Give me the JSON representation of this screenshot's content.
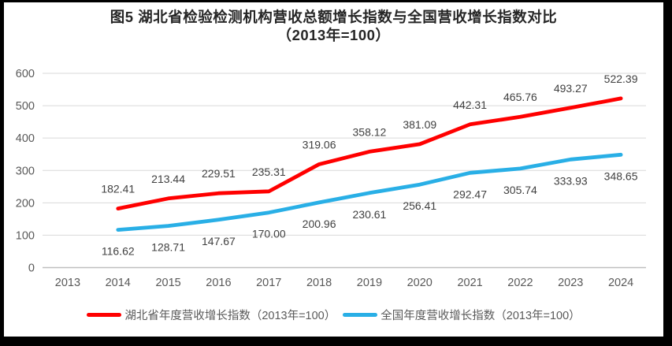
{
  "title": {
    "line1": "图5 湖北省检验检测机构营收总额增长指数与全国营收增长指数对比",
    "line2": "（2013年=100）"
  },
  "chart_data": {
    "type": "line",
    "categories": [
      "2013",
      "2014",
      "2015",
      "2016",
      "2017",
      "2018",
      "2019",
      "2020",
      "2021",
      "2022",
      "2023",
      "2024"
    ],
    "series": [
      {
        "name": "湖北省年度营收增长指数（2013年=100）",
        "color": "#FF0000",
        "label_side": "above",
        "values": [
          null,
          182.41,
          213.44,
          229.51,
          235.31,
          319.06,
          358.12,
          381.09,
          442.31,
          465.76,
          493.27,
          522.39
        ]
      },
      {
        "name": "全国年度营收增长指数（2013年=100）",
        "color": "#29AFE6",
        "label_side": "below",
        "values": [
          null,
          116.62,
          128.71,
          147.67,
          170.0,
          200.96,
          230.61,
          256.41,
          292.47,
          305.74,
          333.93,
          348.65
        ]
      }
    ],
    "xlabel": "",
    "ylabel": "",
    "ylim": [
      0,
      600
    ],
    "ytick_step": 100,
    "grid": true,
    "data_labels": true,
    "label_decimals": 2,
    "legend_position": "bottom"
  },
  "style": {
    "grid_color": "#D9D9D9",
    "axis_line_color": "#BFBFBF",
    "tick_label_color": "#595959",
    "data_label_color": "#404040",
    "title_color": "#262626",
    "frame_border_color": "#000000",
    "background": "#FFFFFF"
  }
}
